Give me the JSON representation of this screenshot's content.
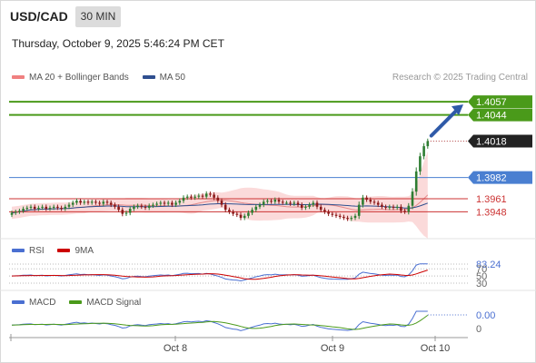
{
  "header": {
    "symbol": "USD/CAD",
    "timeframe": "30 MIN",
    "datetime": "Thursday, October 9, 2025 5:46:24 PM CET"
  },
  "legend_main": [
    {
      "label": "MA 20 + Bollinger Bands",
      "color": "#f08080"
    },
    {
      "label": "MA 50",
      "color": "#2f4f8f"
    }
  ],
  "credit": "Research © 2025 Trading Central",
  "legend_rsi": [
    {
      "label": "RSI",
      "color": "#4a6fd1"
    },
    {
      "label": "9MA",
      "color": "#cc0000"
    }
  ],
  "legend_macd": [
    {
      "label": "MACD",
      "color": "#4a6fd1"
    },
    {
      "label": "MACD Signal",
      "color": "#4a9a1a"
    }
  ],
  "colors": {
    "green_level": "#4a9a1a",
    "blue_level": "#4a7fd1",
    "red_level": "#cc3333",
    "current": "#222222",
    "up_candle": "#2e7d32",
    "down_candle": "#8b1a1a",
    "band_fill": "#fbdada"
  },
  "chart_data": {
    "type": "candlestick",
    "x_ticks": [
      "Oct 8",
      "Oct 9",
      "Oct 10"
    ],
    "price_range": [
      1.3916,
      1.4076
    ],
    "price_levels": [
      {
        "value": 1.4057,
        "label": "1.4057",
        "style": "resistance"
      },
      {
        "value": 1.4044,
        "label": "1.4044",
        "style": "resistance"
      },
      {
        "value": 1.4018,
        "label": "1.4018",
        "style": "current"
      },
      {
        "value": 1.3982,
        "label": "1.3982",
        "style": "support"
      },
      {
        "value": 1.3961,
        "label": "1.3961",
        "style": "pivot"
      },
      {
        "value": 1.3948,
        "label": "1.3948",
        "style": "pivot"
      }
    ],
    "price_series": [
      1.3947,
      1.3948,
      1.3949,
      1.3951,
      1.3952,
      1.3953,
      1.3951,
      1.3952,
      1.3953,
      1.3951,
      1.3952,
      1.3953,
      1.3952,
      1.3951,
      1.3953,
      1.3955,
      1.3957,
      1.3959,
      1.3957,
      1.3958,
      1.3957,
      1.3958,
      1.3957,
      1.3956,
      1.3958,
      1.3957,
      1.3955,
      1.3953,
      1.395,
      1.3946,
      1.3947,
      1.3951,
      1.3953,
      1.3954,
      1.3953,
      1.3952,
      1.3954,
      1.3955,
      1.3956,
      1.3957,
      1.3956,
      1.3957,
      1.3955,
      1.3957,
      1.3959,
      1.3962,
      1.3963,
      1.3962,
      1.3963,
      1.3964,
      1.3963,
      1.3966,
      1.3965,
      1.3962,
      1.3959,
      1.3955,
      1.395,
      1.3948,
      1.3946,
      1.3945,
      1.3942,
      1.3944,
      1.3947,
      1.395,
      1.3953,
      1.3955,
      1.3958,
      1.3959,
      1.3958,
      1.396,
      1.3958,
      1.3957,
      1.3957,
      1.3956,
      1.3957,
      1.3955,
      1.3952,
      1.3953,
      1.3955,
      1.3957,
      1.3953,
      1.395,
      1.3948,
      1.3946,
      1.3945,
      1.3944,
      1.3943,
      1.3942,
      1.3941,
      1.3942,
      1.3944,
      1.3955,
      1.3962,
      1.396,
      1.3958,
      1.3957,
      1.3955,
      1.3953,
      1.3952,
      1.3953,
      1.3952,
      1.3953,
      1.3949,
      1.3948,
      1.3954,
      1.3968,
      1.3988,
      1.4003,
      1.4013,
      1.4018
    ],
    "indicator_levels": [
      83.24,
      70,
      50,
      30
    ],
    "macd_labels": [
      "0.00",
      "0"
    ]
  }
}
